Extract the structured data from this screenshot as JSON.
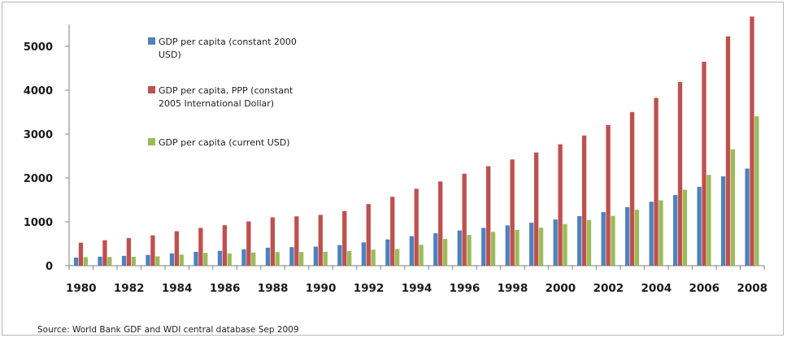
{
  "chart_data": {
    "type": "bar",
    "title": "",
    "xlabel": "",
    "ylabel": "",
    "ylim": [
      0,
      5500
    ],
    "yticks": [
      0,
      1000,
      2000,
      3000,
      4000,
      5000
    ],
    "categories": [
      "1980",
      "1981",
      "1982",
      "1983",
      "1984",
      "1985",
      "1986",
      "1987",
      "1988",
      "1989",
      "1990",
      "1991",
      "1992",
      "1993",
      "1994",
      "1995",
      "1996",
      "1997",
      "1998",
      "1999",
      "2000",
      "2001",
      "2002",
      "2003",
      "2004",
      "2005",
      "2006",
      "2007",
      "2008"
    ],
    "x_tick_labels": [
      "1980",
      "1982",
      "1984",
      "1986",
      "1988",
      "1990",
      "1992",
      "1994",
      "1996",
      "1998",
      "2000",
      "2002",
      "2004",
      "2006",
      "2008"
    ],
    "grid": false,
    "legend_position": "top-left",
    "series": [
      {
        "name": "GDP per capita (constant 2000 USD)",
        "legend_lines": [
          "GDP per capita (constant 2000",
          "USD)"
        ],
        "color": "#4f81bd",
        "values": [
          186,
          206,
          224,
          246,
          281,
          316,
          339,
          374,
          411,
          423,
          435,
          469,
          531,
          599,
          672,
          739,
          803,
          861,
          919,
          980,
          1053,
          1131,
          1222,
          1333,
          1457,
          1609,
          1799,
          2036,
          2214
        ]
      },
      {
        "name": "GDP per capita, PPP (constant 2005 International Dollar)",
        "legend_lines": [
          "GDP per capita, PPP (constant",
          "2005 International Dollar)"
        ],
        "color": "#c0504d",
        "values": [
          524,
          580,
          628,
          690,
          785,
          862,
          922,
          1009,
          1101,
          1125,
          1158,
          1245,
          1404,
          1570,
          1752,
          1920,
          2096,
          2267,
          2422,
          2580,
          2767,
          2968,
          3206,
          3504,
          3825,
          4187,
          4648,
          5227,
          5678
        ]
      },
      {
        "name": "GDP per capita (current USD)",
        "legend_lines": [
          "GDP per capita (current USD)"
        ],
        "color": "#9bbb59",
        "values": [
          194,
          197,
          203,
          214,
          252,
          293,
          280,
          300,
          312,
          312,
          317,
          333,
          365,
          380,
          477,
          610,
          700,
          772,
          818,
          865,
          949,
          1042,
          1135,
          1274,
          1490,
          1731,
          2069,
          2652,
          3404
        ]
      }
    ],
    "source": "Source: World Bank GDF and WDI central database Sep 2009"
  }
}
